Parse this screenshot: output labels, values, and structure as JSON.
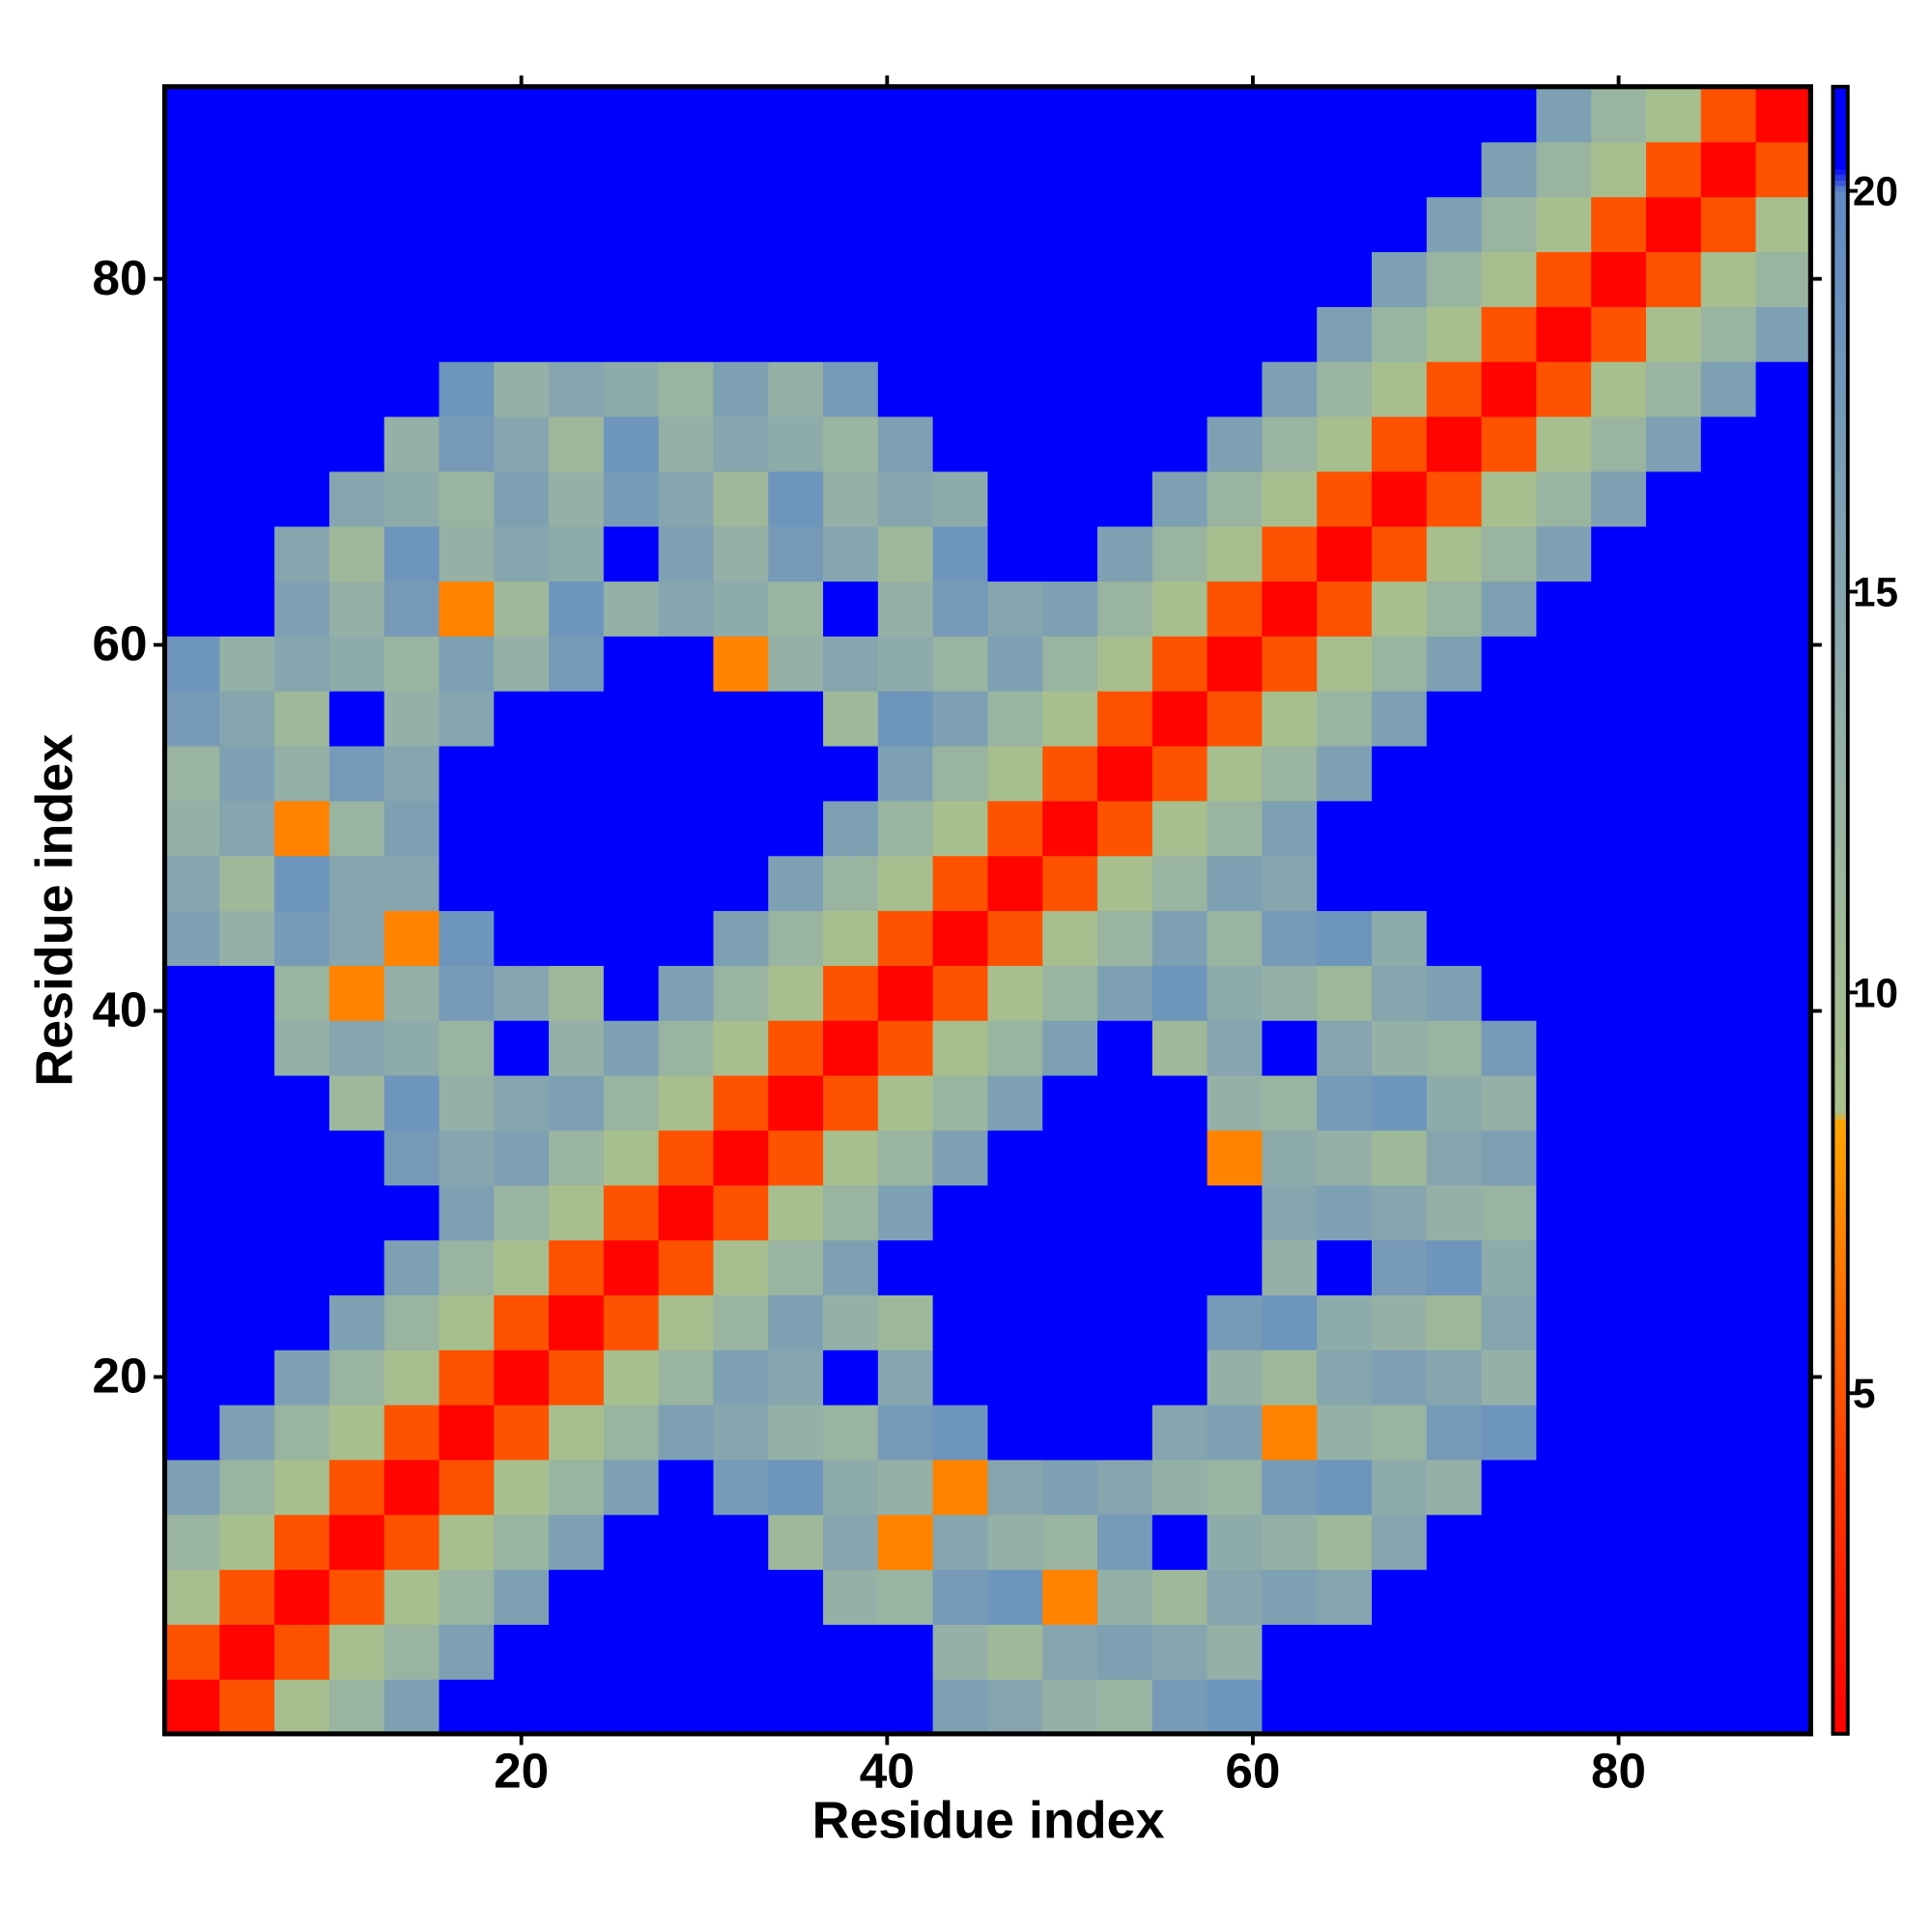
{
  "chart_data": {
    "type": "heatmap",
    "xlabel": "Residue index",
    "ylabel": "Residue index",
    "x": [
      2,
      5,
      8,
      11,
      14,
      17,
      20,
      23,
      26,
      29,
      32,
      35,
      38,
      41,
      44,
      47,
      50,
      53,
      56,
      59,
      62,
      65,
      68,
      71,
      74,
      77,
      80,
      83,
      86,
      89
    ],
    "y": [
      2,
      5,
      8,
      11,
      14,
      17,
      20,
      23,
      26,
      29,
      32,
      35,
      38,
      41,
      44,
      47,
      50,
      53,
      56,
      59,
      62,
      65,
      68,
      71,
      74,
      77,
      80,
      83,
      86,
      89
    ],
    "z": [
      [
        1,
        5,
        9,
        12,
        16,
        21,
        21,
        21,
        21,
        21,
        21,
        21,
        21,
        21,
        16,
        15,
        13,
        12,
        17,
        18,
        21,
        21,
        21,
        21,
        21,
        21,
        21,
        21,
        21,
        21
      ],
      [
        5,
        1,
        5,
        9,
        12,
        16,
        21,
        21,
        21,
        21,
        21,
        21,
        21,
        21,
        13,
        11,
        15,
        16,
        15,
        13,
        21,
        21,
        21,
        21,
        21,
        21,
        21,
        21,
        21,
        21
      ],
      [
        9,
        5,
        1,
        5,
        9,
        12,
        16,
        21,
        21,
        21,
        21,
        21,
        13,
        12,
        17,
        18,
        7,
        13,
        11,
        15,
        16,
        15,
        21,
        21,
        21,
        21,
        21,
        21,
        21,
        21
      ],
      [
        12,
        9,
        5,
        1,
        5,
        9,
        12,
        16,
        21,
        21,
        21,
        11,
        15,
        7,
        15,
        13,
        12,
        17,
        21,
        14,
        13,
        11,
        15,
        21,
        21,
        21,
        21,
        21,
        21,
        21
      ],
      [
        16,
        12,
        9,
        5,
        1,
        5,
        9,
        12,
        16,
        21,
        17,
        18,
        14,
        13,
        7,
        15,
        16,
        15,
        13,
        12,
        17,
        18,
        14,
        13,
        21,
        21,
        21,
        21,
        21,
        21
      ],
      [
        21,
        16,
        12,
        9,
        5,
        1,
        5,
        9,
        12,
        16,
        15,
        13,
        12,
        17,
        18,
        21,
        21,
        21,
        15,
        16,
        7,
        13,
        12,
        17,
        18,
        21,
        21,
        21,
        21,
        21
      ],
      [
        21,
        21,
        16,
        12,
        9,
        5,
        1,
        5,
        9,
        12,
        16,
        15,
        21,
        15,
        21,
        21,
        21,
        21,
        21,
        13,
        11,
        15,
        16,
        15,
        13,
        21,
        21,
        21,
        21,
        21
      ],
      [
        21,
        21,
        21,
        16,
        12,
        9,
        5,
        1,
        5,
        9,
        12,
        16,
        13,
        11,
        21,
        21,
        21,
        21,
        21,
        17,
        18,
        14,
        13,
        11,
        15,
        21,
        21,
        21,
        21,
        21
      ],
      [
        21,
        21,
        21,
        21,
        16,
        12,
        9,
        5,
        1,
        5,
        9,
        12,
        16,
        21,
        21,
        21,
        21,
        21,
        21,
        21,
        13,
        21,
        17,
        18,
        14,
        21,
        21,
        21,
        21,
        21
      ],
      [
        21,
        21,
        21,
        21,
        21,
        16,
        12,
        9,
        5,
        1,
        5,
        9,
        12,
        16,
        21,
        21,
        21,
        21,
        21,
        21,
        15,
        16,
        15,
        13,
        12,
        21,
        21,
        21,
        21,
        21
      ],
      [
        21,
        21,
        21,
        21,
        17,
        15,
        16,
        12,
        9,
        5,
        1,
        5,
        9,
        12,
        16,
        21,
        21,
        21,
        21,
        7,
        14,
        13,
        11,
        15,
        16,
        21,
        21,
        21,
        21,
        21
      ],
      [
        21,
        21,
        21,
        11,
        18,
        13,
        15,
        16,
        12,
        9,
        5,
        1,
        5,
        9,
        12,
        16,
        21,
        21,
        21,
        13,
        12,
        17,
        18,
        14,
        13,
        21,
        21,
        21,
        21,
        21
      ],
      [
        21,
        21,
        13,
        15,
        14,
        12,
        21,
        13,
        16,
        12,
        9,
        5,
        1,
        5,
        9,
        12,
        16,
        21,
        11,
        15,
        21,
        15,
        13,
        12,
        17,
        21,
        21,
        21,
        21,
        21
      ],
      [
        21,
        21,
        12,
        7,
        13,
        17,
        15,
        11,
        21,
        16,
        12,
        9,
        5,
        1,
        5,
        9,
        12,
        16,
        18,
        14,
        13,
        11,
        15,
        16,
        21,
        21,
        21,
        21,
        21,
        21
      ],
      [
        16,
        13,
        17,
        15,
        7,
        18,
        21,
        21,
        21,
        21,
        16,
        12,
        9,
        5,
        1,
        5,
        9,
        12,
        16,
        12,
        17,
        18,
        14,
        21,
        21,
        21,
        21,
        21,
        21,
        21
      ],
      [
        15,
        11,
        18,
        15,
        15,
        21,
        21,
        21,
        21,
        21,
        21,
        16,
        12,
        9,
        5,
        1,
        5,
        9,
        12,
        16,
        15,
        21,
        21,
        21,
        21,
        21,
        21,
        21,
        21,
        21
      ],
      [
        13,
        15,
        7,
        12,
        16,
        21,
        21,
        21,
        21,
        21,
        21,
        21,
        16,
        12,
        9,
        5,
        1,
        5,
        9,
        12,
        16,
        21,
        21,
        21,
        21,
        21,
        21,
        21,
        21,
        21
      ],
      [
        12,
        16,
        13,
        17,
        15,
        21,
        21,
        21,
        21,
        21,
        21,
        21,
        21,
        16,
        12,
        9,
        5,
        1,
        5,
        9,
        12,
        16,
        21,
        21,
        21,
        21,
        21,
        21,
        21,
        21
      ],
      [
        17,
        15,
        11,
        21,
        13,
        15,
        21,
        21,
        21,
        21,
        21,
        21,
        11,
        18,
        16,
        12,
        9,
        5,
        1,
        5,
        9,
        12,
        16,
        21,
        21,
        21,
        21,
        21,
        21,
        21
      ],
      [
        18,
        13,
        15,
        14,
        12,
        16,
        13,
        17,
        21,
        21,
        7,
        13,
        15,
        14,
        12,
        16,
        12,
        9,
        5,
        1,
        5,
        9,
        12,
        16,
        21,
        21,
        21,
        21,
        21,
        21
      ],
      [
        21,
        21,
        16,
        13,
        17,
        7,
        11,
        18,
        13,
        15,
        14,
        12,
        21,
        13,
        17,
        15,
        16,
        12,
        9,
        5,
        1,
        5,
        9,
        12,
        16,
        21,
        21,
        21,
        21,
        21
      ],
      [
        21,
        21,
        15,
        11,
        18,
        13,
        15,
        14,
        21,
        16,
        13,
        17,
        15,
        11,
        18,
        21,
        21,
        16,
        12,
        9,
        5,
        1,
        5,
        9,
        12,
        16,
        21,
        21,
        21,
        21
      ],
      [
        21,
        21,
        21,
        15,
        14,
        12,
        16,
        13,
        17,
        15,
        11,
        18,
        13,
        15,
        14,
        21,
        21,
        21,
        16,
        12,
        9,
        5,
        1,
        5,
        9,
        12,
        16,
        21,
        21,
        21
      ],
      [
        21,
        21,
        21,
        21,
        13,
        17,
        15,
        11,
        18,
        13,
        15,
        14,
        12,
        16,
        21,
        21,
        21,
        21,
        21,
        16,
        12,
        9,
        5,
        1,
        5,
        9,
        12,
        16,
        21,
        21
      ],
      [
        21,
        21,
        21,
        21,
        21,
        18,
        13,
        15,
        14,
        12,
        16,
        13,
        17,
        21,
        21,
        21,
        21,
        21,
        21,
        21,
        16,
        12,
        9,
        5,
        1,
        5,
        9,
        12,
        16,
        21
      ],
      [
        21,
        21,
        21,
        21,
        21,
        21,
        21,
        21,
        21,
        21,
        21,
        21,
        21,
        21,
        21,
        21,
        21,
        21,
        21,
        21,
        21,
        16,
        12,
        9,
        5,
        1,
        5,
        9,
        12,
        16
      ],
      [
        21,
        21,
        21,
        21,
        21,
        21,
        21,
        21,
        21,
        21,
        21,
        21,
        21,
        21,
        21,
        21,
        21,
        21,
        21,
        21,
        21,
        21,
        16,
        12,
        9,
        5,
        1,
        5,
        9,
        12
      ],
      [
        21,
        21,
        21,
        21,
        21,
        21,
        21,
        21,
        21,
        21,
        21,
        21,
        21,
        21,
        21,
        21,
        21,
        21,
        21,
        21,
        21,
        21,
        21,
        16,
        12,
        9,
        5,
        1,
        5,
        9
      ],
      [
        21,
        21,
        21,
        21,
        21,
        21,
        21,
        21,
        21,
        21,
        21,
        21,
        21,
        21,
        21,
        21,
        21,
        21,
        21,
        21,
        21,
        21,
        21,
        21,
        16,
        12,
        9,
        5,
        1,
        5
      ],
      [
        21,
        21,
        21,
        21,
        21,
        21,
        21,
        21,
        21,
        21,
        21,
        21,
        21,
        21,
        21,
        21,
        21,
        21,
        21,
        21,
        21,
        21,
        21,
        21,
        21,
        16,
        12,
        9,
        5,
        1
      ]
    ],
    "xlim": [
      0.5,
      90.5
    ],
    "ylim": [
      0.5,
      90.5
    ],
    "xticks": [
      20,
      40,
      60,
      80
    ],
    "yticks": [
      20,
      40,
      60,
      80
    ],
    "zlim": [
      0.75,
      21.3
    ],
    "zticks": [
      5,
      10,
      15,
      20
    ],
    "colorscale": [
      [
        0.75,
        "#ff0000"
      ],
      [
        4,
        "#ff3a00"
      ],
      [
        8.4,
        "#ffa500"
      ],
      [
        8.5,
        "#a9c18b"
      ],
      [
        13,
        "#95b0a6"
      ],
      [
        20,
        "#5f8ac4"
      ],
      [
        20.3,
        "#0000ff"
      ],
      [
        21.3,
        "#0000ff"
      ]
    ]
  }
}
